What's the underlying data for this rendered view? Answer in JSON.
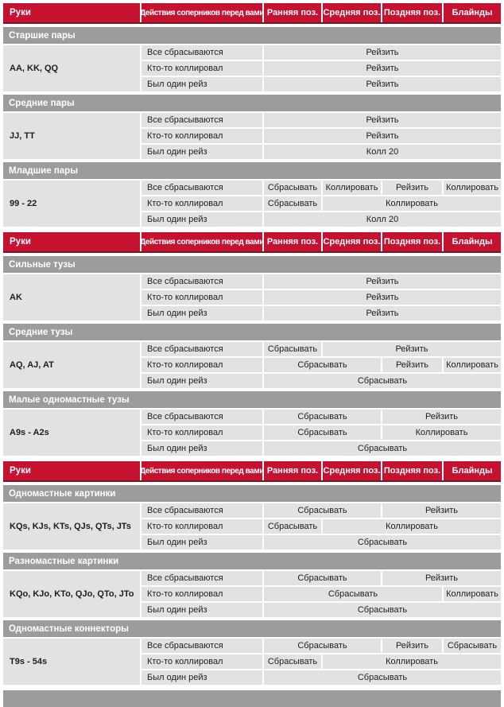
{
  "colors": {
    "header_bg": "#c41230",
    "header_border": "#6e1b22",
    "header_text": "#ffffff",
    "section_bg": "#9c9c9c",
    "section_text": "#ffffff",
    "cell_bg": "#e2e2e2",
    "cell_text": "#1d1d1b"
  },
  "columns": [
    "Руки",
    "Действия соперников перед вами",
    "Ранняя поз.",
    "Средняя поз.",
    "Поздняя поз.",
    "Блайнды"
  ],
  "tables": [
    {
      "sections": [
        {
          "title": "Старшие пары",
          "hand": "AA, KK, QQ",
          "rows": [
            {
              "condition": "Все сбрасываются",
              "actions": [
                {
                  "label": "Рейзить",
                  "span": 4
                }
              ]
            },
            {
              "condition": "Кто-то коллировал",
              "actions": [
                {
                  "label": "Рейзить",
                  "span": 4
                }
              ]
            },
            {
              "condition": "Был один рейз",
              "actions": [
                {
                  "label": "Рейзить",
                  "span": 4
                }
              ]
            }
          ]
        },
        {
          "title": "Средние пары",
          "hand": "JJ, TT",
          "rows": [
            {
              "condition": "Все сбрасываются",
              "actions": [
                {
                  "label": "Рейзить",
                  "span": 4
                }
              ]
            },
            {
              "condition": "Кто-то коллировал",
              "actions": [
                {
                  "label": "Рейзить",
                  "span": 4
                }
              ]
            },
            {
              "condition": "Был один рейз",
              "actions": [
                {
                  "label": "Колл  20",
                  "span": 4
                }
              ]
            }
          ]
        },
        {
          "title": "Младшие пары",
          "hand": "99 - 22",
          "rows": [
            {
              "condition": "Все сбрасываются",
              "actions": [
                {
                  "label": "Сбрасывать",
                  "span": 1
                },
                {
                  "label": "Коллировать",
                  "span": 1
                },
                {
                  "label": "Рейзить",
                  "span": 1
                },
                {
                  "label": "Коллировать",
                  "span": 1
                }
              ]
            },
            {
              "condition": "Кто-то коллировал",
              "actions": [
                {
                  "label": "Сбрасывать",
                  "span": 1
                },
                {
                  "label": "Коллировать",
                  "span": 3
                }
              ]
            },
            {
              "condition": "Был один рейз",
              "actions": [
                {
                  "label": "Колл  20",
                  "span": 4
                }
              ]
            }
          ]
        }
      ]
    },
    {
      "sections": [
        {
          "title": "Сильные тузы",
          "hand": "AK",
          "rows": [
            {
              "condition": "Все сбрасываются",
              "actions": [
                {
                  "label": "Рейзить",
                  "span": 4
                }
              ]
            },
            {
              "condition": "Кто-то коллировал",
              "actions": [
                {
                  "label": "Рейзить",
                  "span": 4
                }
              ]
            },
            {
              "condition": "Был один рейз",
              "actions": [
                {
                  "label": "Рейзить",
                  "span": 4
                }
              ]
            }
          ]
        },
        {
          "title": "Средние тузы",
          "hand": "AQ, AJ, AT",
          "rows": [
            {
              "condition": "Все сбрасываются",
              "actions": [
                {
                  "label": "Сбрасывать",
                  "span": 1
                },
                {
                  "label": "Рейзить",
                  "span": 3
                }
              ]
            },
            {
              "condition": "Кто-то коллировал",
              "actions": [
                {
                  "label": "Сбрасывать",
                  "span": 2
                },
                {
                  "label": "Рейзить",
                  "span": 1
                },
                {
                  "label": "Коллировать",
                  "span": 1
                }
              ]
            },
            {
              "condition": "Был один рейз",
              "actions": [
                {
                  "label": "Сбрасывать",
                  "span": 4
                }
              ]
            }
          ]
        },
        {
          "title": "Малые одномастные тузы",
          "hand": "A9s - A2s",
          "rows": [
            {
              "condition": "Все сбрасываются",
              "actions": [
                {
                  "label": "Сбрасывать",
                  "span": 2
                },
                {
                  "label": "Рейзить",
                  "span": 2
                }
              ]
            },
            {
              "condition": "Кто-то коллировал",
              "actions": [
                {
                  "label": "Сбрасывать",
                  "span": 2
                },
                {
                  "label": "Коллировать",
                  "span": 2
                }
              ]
            },
            {
              "condition": "Был один рейз",
              "actions": [
                {
                  "label": "Сбрасывать",
                  "span": 4
                }
              ]
            }
          ]
        }
      ]
    },
    {
      "sections": [
        {
          "title": "Одномастные картинки",
          "hand": "KQs, KJs, KTs, QJs, QTs, JTs",
          "rows": [
            {
              "condition": "Все сбрасываются",
              "actions": [
                {
                  "label": "Сбрасывать",
                  "span": 2
                },
                {
                  "label": "Рейзить",
                  "span": 2
                }
              ]
            },
            {
              "condition": "Кто-то коллировал",
              "actions": [
                {
                  "label": "Сбрасывать",
                  "span": 1
                },
                {
                  "label": "Коллировать",
                  "span": 3
                }
              ]
            },
            {
              "condition": "Был один рейз",
              "actions": [
                {
                  "label": "Сбрасывать",
                  "span": 4
                }
              ]
            }
          ]
        },
        {
          "title": "Разномастные картинки",
          "hand": "KQo, KJo, KTo, QJo, QTo, JTo",
          "rows": [
            {
              "condition": "Все сбрасываются",
              "actions": [
                {
                  "label": "Сбрасывать",
                  "span": 2
                },
                {
                  "label": "Рейзить",
                  "span": 2
                }
              ]
            },
            {
              "condition": "Кто-то коллировал",
              "actions": [
                {
                  "label": "Сбрасывать",
                  "span": 3
                },
                {
                  "label": "Коллировать",
                  "span": 1
                }
              ]
            },
            {
              "condition": "Был один рейз",
              "actions": [
                {
                  "label": "Сбрасывать",
                  "span": 4
                }
              ]
            }
          ]
        },
        {
          "title": "Одномастные коннекторы",
          "hand": "T9s - 54s",
          "rows": [
            {
              "condition": "Все сбрасываются",
              "actions": [
                {
                  "label": "Сбрасывать",
                  "span": 2
                },
                {
                  "label": "Рейзить",
                  "span": 1
                },
                {
                  "label": "Сбрасывать",
                  "span": 1
                }
              ]
            },
            {
              "condition": "Кто-то коллировал",
              "actions": [
                {
                  "label": "Сбрасывать",
                  "span": 1
                },
                {
                  "label": "Коллировать",
                  "span": 3
                }
              ]
            },
            {
              "condition": "Был один рейз",
              "actions": [
                {
                  "label": "Сбрасывать",
                  "span": 4
                }
              ]
            }
          ]
        }
      ]
    }
  ]
}
